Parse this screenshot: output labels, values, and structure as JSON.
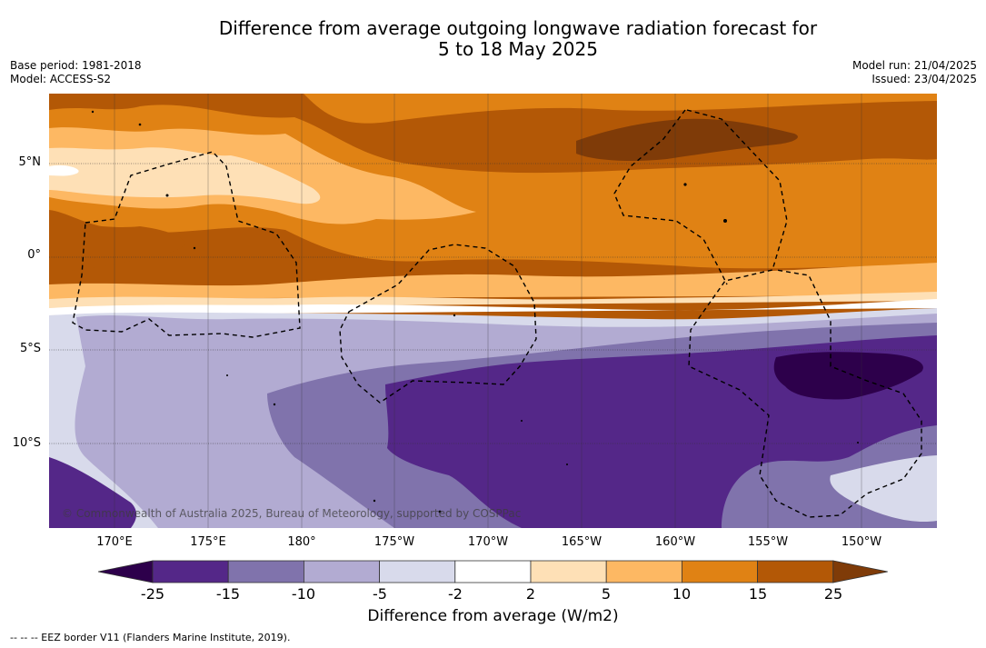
{
  "title_line1": "Difference from average outgoing longwave radiation forecast for",
  "title_line2": "5 to 18 May 2025",
  "base_period": "Base period: 1981-2018",
  "model": "Model: ACCESS-S2",
  "model_run": "Model run: 21/04/2025",
  "issued": "Issued: 23/04/2025",
  "lat_ticks": [
    "5°N",
    "0°",
    "5°S",
    "10°S"
  ],
  "lon_ticks": [
    "170°E",
    "175°E",
    "180°",
    "175°W",
    "170°W",
    "165°W",
    "160°W",
    "155°W",
    "150°W"
  ],
  "colorbar": {
    "ticks": [
      "-25",
      "-15",
      "-10",
      "-5",
      "-2",
      "2",
      "5",
      "10",
      "15",
      "25"
    ],
    "colors": [
      "#2d004b",
      "#542788",
      "#8073ac",
      "#b2abd2",
      "#d8daeb",
      "#ffffff",
      "#fee0b6",
      "#fdb863",
      "#e08214",
      "#b35806",
      "#7f3b08"
    ],
    "label": "Difference from average (W/m2)"
  },
  "footnote": "-- -- -- EEZ border V11 (Flanders Marine Institute, 2019).",
  "copyright": "© Commonwealth of Australia 2025, Bureau of Meteorology, supported by COSPPac"
}
